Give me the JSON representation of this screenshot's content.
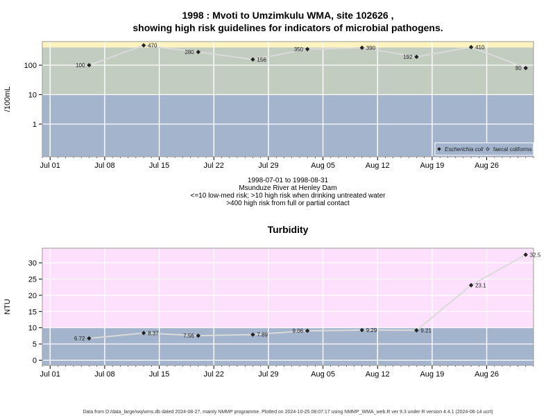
{
  "page": {
    "title_line1": "1998 : Mvoti to Umzimkulu WMA, site 102626 ,",
    "title_line2": "showing high risk guidelines for indicators of microbial pathogens.",
    "caption_lines": [
      "1998-07-01 to 1998-08-31",
      "Msunduze River at Henley Dam",
      "<=10 low-med risk; >10 high risk when drinking untreated water",
      ">400 high risk from full or partial contact"
    ],
    "footer": "Data from D:/data_large/wq/wms.db dated 2024-08-27, mainly NMMP programme. Plotted on 2024-10-25 08:07:17 using NMMP_WMA_web.R ver 9.3 under R version 4.4.1 (2024-06-14 ucrt)"
  },
  "colors": {
    "low_band": "#a3b4cc",
    "mid_band": "#c3cdbf",
    "high_band": "#fff3c0",
    "turb_high_band": "#fde0fb",
    "grid": "#ffffff",
    "line": "#dadada",
    "point": "#222222"
  },
  "chart_data": [
    {
      "type": "line",
      "title": "",
      "ylabel": "/100mL",
      "y_scale": "log",
      "yticks": [
        1,
        10,
        100
      ],
      "ytick_labels": [
        "1",
        "10",
        "100"
      ],
      "x_ticks": [
        "1998-07-01",
        "1998-07-08",
        "1998-07-15",
        "1998-07-22",
        "1998-07-29",
        "1998-08-05",
        "1998-08-12",
        "1998-08-19",
        "1998-08-26"
      ],
      "x_tick_labels": [
        "Jul 01",
        "Jul 08",
        "Jul 15",
        "Jul 22",
        "Jul 29",
        "Aug 05",
        "Aug 12",
        "Aug 19",
        "Aug 26"
      ],
      "xlim": [
        "1998-06-30",
        "1998-09-01"
      ],
      "bands": [
        {
          "from": 0,
          "to": 10,
          "color_key": "low_band"
        },
        {
          "from": 10,
          "to": 400,
          "color_key": "mid_band"
        },
        {
          "from": 400,
          "to": null,
          "color_key": "high_band"
        }
      ],
      "legend": {
        "position": "bottom-right",
        "entries": [
          "Escherichia coli",
          "faecal coliforms"
        ]
      },
      "series": [
        {
          "name": "faecal coliforms",
          "x": [
            "1998-07-06",
            "1998-07-13",
            "1998-07-20",
            "1998-07-27",
            "1998-08-03",
            "1998-08-10",
            "1998-08-17",
            "1998-08-24",
            "1998-08-31"
          ],
          "y": [
            100,
            470,
            280,
            156,
            350,
            390,
            192,
            410,
            80
          ],
          "labels": [
            "100",
            "470",
            "280",
            "156",
            "350",
            "390",
            "192",
            "410",
            "80"
          ]
        }
      ]
    },
    {
      "type": "line",
      "title": "Turbidity",
      "ylabel": "NTU",
      "ylim": [
        -1.6,
        34.5
      ],
      "yticks": [
        0,
        5,
        10,
        15,
        20,
        25,
        30
      ],
      "x_ticks": [
        "1998-07-01",
        "1998-07-08",
        "1998-07-15",
        "1998-07-22",
        "1998-07-29",
        "1998-08-05",
        "1998-08-12",
        "1998-08-19",
        "1998-08-26"
      ],
      "x_tick_labels": [
        "Jul 01",
        "Jul 08",
        "Jul 15",
        "Jul 22",
        "Jul 29",
        "Aug 05",
        "Aug 12",
        "Aug 19",
        "Aug 26"
      ],
      "xlim": [
        "1998-06-30",
        "1998-09-01"
      ],
      "bands": [
        {
          "from": null,
          "to": 10,
          "color_key": "low_band"
        },
        {
          "from": 10,
          "to": null,
          "color_key": "turb_high_band"
        }
      ],
      "series": [
        {
          "x": [
            "1998-07-06",
            "1998-07-13",
            "1998-07-20",
            "1998-07-27",
            "1998-08-03",
            "1998-08-10",
            "1998-08-17",
            "1998-08-24",
            "1998-08-31"
          ],
          "y": [
            6.72,
            8.37,
            7.56,
            7.89,
            9.06,
            9.29,
            9.21,
            23.1,
            32.5
          ],
          "labels": [
            "6.72",
            "8.37",
            "7.56",
            "7.89",
            "9.06",
            "9.29",
            "9.21",
            "23.1",
            "32.5"
          ]
        }
      ]
    }
  ]
}
